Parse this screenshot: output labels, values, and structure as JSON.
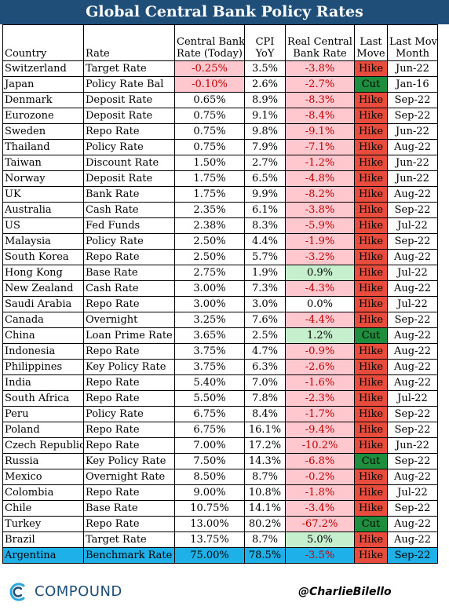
{
  "title": "Global Central Bank Policy Rates",
  "headers": {
    "country": "Country",
    "rate": "Rate",
    "policy_rate_l1": "Central Bank",
    "policy_rate_l2": "Rate (Today)",
    "cpi_l1": "CPI",
    "cpi_l2": "YoY",
    "real_l1": "Real Central",
    "real_l2": "Bank Rate",
    "move_l1": "Last",
    "move_l2": "Move",
    "month_l1": "Last Move",
    "month_l2": "Month"
  },
  "colors": {
    "title_bg": "#1f4e79",
    "negative_fill": "#ffc7ce",
    "positive_fill": "#c6efce",
    "negative_text": "#c00000",
    "hike_fill": "#e74c3c",
    "cut_fill": "#1e8e3e",
    "highlight_row": "#1eb0e8"
  },
  "chart_data": {
    "type": "table",
    "title": "Global Central Bank Policy Rates",
    "columns": [
      "Country",
      "Rate",
      "Central Bank Rate (Today)",
      "CPI YoY",
      "Real Central Bank Rate",
      "Last Move",
      "Last Move Month"
    ],
    "rows": [
      {
        "country": "Switzerland",
        "rate": "Target Rate",
        "policy_rate": "-0.25%",
        "cpi": "3.5%",
        "real": "-3.8%",
        "move": "Hike",
        "month": "Jun-22"
      },
      {
        "country": "Japan",
        "rate": "Policy Rate Bal",
        "policy_rate": "-0.10%",
        "cpi": "2.6%",
        "real": "-2.7%",
        "move": "Cut",
        "month": "Jan-16"
      },
      {
        "country": "Denmark",
        "rate": "Deposit Rate",
        "policy_rate": "0.65%",
        "cpi": "8.9%",
        "real": "-8.3%",
        "move": "Hike",
        "month": "Sep-22"
      },
      {
        "country": "Eurozone",
        "rate": "Deposit Rate",
        "policy_rate": "0.75%",
        "cpi": "9.1%",
        "real": "-8.4%",
        "move": "Hike",
        "month": "Sep-22"
      },
      {
        "country": "Sweden",
        "rate": "Repo Rate",
        "policy_rate": "0.75%",
        "cpi": "9.8%",
        "real": "-9.1%",
        "move": "Hike",
        "month": "Jun-22"
      },
      {
        "country": "Thailand",
        "rate": "Policy Rate",
        "policy_rate": "0.75%",
        "cpi": "7.9%",
        "real": "-7.1%",
        "move": "Hike",
        "month": "Aug-22"
      },
      {
        "country": "Taiwan",
        "rate": "Discount Rate",
        "policy_rate": "1.50%",
        "cpi": "2.7%",
        "real": "-1.2%",
        "move": "Hike",
        "month": "Jun-22"
      },
      {
        "country": "Norway",
        "rate": "Deposit Rate",
        "policy_rate": "1.75%",
        "cpi": "6.5%",
        "real": "-4.8%",
        "move": "Hike",
        "month": "Jun-22"
      },
      {
        "country": "UK",
        "rate": "Bank Rate",
        "policy_rate": "1.75%",
        "cpi": "9.9%",
        "real": "-8.2%",
        "move": "Hike",
        "month": "Aug-22"
      },
      {
        "country": "Australia",
        "rate": "Cash Rate",
        "policy_rate": "2.35%",
        "cpi": "6.1%",
        "real": "-3.8%",
        "move": "Hike",
        "month": "Sep-22"
      },
      {
        "country": "US",
        "rate": "Fed Funds",
        "policy_rate": "2.38%",
        "cpi": "8.3%",
        "real": "-5.9%",
        "move": "Hike",
        "month": "Jul-22"
      },
      {
        "country": "Malaysia",
        "rate": "Policy Rate",
        "policy_rate": "2.50%",
        "cpi": "4.4%",
        "real": "-1.9%",
        "move": "Hike",
        "month": "Sep-22"
      },
      {
        "country": "South Korea",
        "rate": "Repo Rate",
        "policy_rate": "2.50%",
        "cpi": "5.7%",
        "real": "-3.2%",
        "move": "Hike",
        "month": "Aug-22"
      },
      {
        "country": "Hong Kong",
        "rate": "Base Rate",
        "policy_rate": "2.75%",
        "cpi": "1.9%",
        "real": "0.9%",
        "move": "Hike",
        "month": "Jul-22"
      },
      {
        "country": "New Zealand",
        "rate": "Cash Rate",
        "policy_rate": "3.00%",
        "cpi": "7.3%",
        "real": "-4.3%",
        "move": "Hike",
        "month": "Aug-22"
      },
      {
        "country": "Saudi Arabia",
        "rate": "Repo Rate",
        "policy_rate": "3.00%",
        "cpi": "3.0%",
        "real": "0.0%",
        "move": "Hike",
        "month": "Jul-22"
      },
      {
        "country": "Canada",
        "rate": "Overnight",
        "policy_rate": "3.25%",
        "cpi": "7.6%",
        "real": "-4.4%",
        "move": "Hike",
        "month": "Sep-22"
      },
      {
        "country": "China",
        "rate": "Loan Prime Rate",
        "policy_rate": "3.65%",
        "cpi": "2.5%",
        "real": "1.2%",
        "move": "Cut",
        "month": "Aug-22"
      },
      {
        "country": "Indonesia",
        "rate": "Repo Rate",
        "policy_rate": "3.75%",
        "cpi": "4.7%",
        "real": "-0.9%",
        "move": "Hike",
        "month": "Aug-22"
      },
      {
        "country": "Philippines",
        "rate": "Key Policy Rate",
        "policy_rate": "3.75%",
        "cpi": "6.3%",
        "real": "-2.6%",
        "move": "Hike",
        "month": "Aug-22"
      },
      {
        "country": "India",
        "rate": "Repo Rate",
        "policy_rate": "5.40%",
        "cpi": "7.0%",
        "real": "-1.6%",
        "move": "Hike",
        "month": "Aug-22"
      },
      {
        "country": "South Africa",
        "rate": "Repo Rate",
        "policy_rate": "5.50%",
        "cpi": "7.8%",
        "real": "-2.3%",
        "move": "Hike",
        "month": "Jul-22"
      },
      {
        "country": "Peru",
        "rate": "Policy Rate",
        "policy_rate": "6.75%",
        "cpi": "8.4%",
        "real": "-1.7%",
        "move": "Hike",
        "month": "Sep-22"
      },
      {
        "country": "Poland",
        "rate": "Repo Rate",
        "policy_rate": "6.75%",
        "cpi": "16.1%",
        "real": "-9.4%",
        "move": "Hike",
        "month": "Sep-22"
      },
      {
        "country": "Czech Republic",
        "rate": "Repo Rate",
        "policy_rate": "7.00%",
        "cpi": "17.2%",
        "real": "-10.2%",
        "move": "Hike",
        "month": "Jun-22"
      },
      {
        "country": "Russia",
        "rate": "Key Policy Rate",
        "policy_rate": "7.50%",
        "cpi": "14.3%",
        "real": "-6.8%",
        "move": "Cut",
        "month": "Sep-22"
      },
      {
        "country": "Mexico",
        "rate": "Overnight Rate",
        "policy_rate": "8.50%",
        "cpi": "8.7%",
        "real": "-0.2%",
        "move": "Hike",
        "month": "Aug-22"
      },
      {
        "country": "Colombia",
        "rate": "Repo Rate",
        "policy_rate": "9.00%",
        "cpi": "10.8%",
        "real": "-1.8%",
        "move": "Hike",
        "month": "Jul-22"
      },
      {
        "country": "Chile",
        "rate": "Base Rate",
        "policy_rate": "10.75%",
        "cpi": "14.1%",
        "real": "-3.4%",
        "move": "Hike",
        "month": "Sep-22"
      },
      {
        "country": "Turkey",
        "rate": "Repo Rate",
        "policy_rate": "13.00%",
        "cpi": "80.2%",
        "real": "-67.2%",
        "move": "Cut",
        "month": "Aug-22"
      },
      {
        "country": "Brazil",
        "rate": "Target Rate",
        "policy_rate": "13.75%",
        "cpi": "8.7%",
        "real": "5.0%",
        "move": "Hike",
        "month": "Aug-22"
      },
      {
        "country": "Argentina",
        "rate": "Benchmark Rate",
        "policy_rate": "75.00%",
        "cpi": "78.5%",
        "real": "-3.5%",
        "move": "Hike",
        "month": "Sep-22"
      }
    ]
  },
  "footer": {
    "brand": "COMPOUND",
    "handle": "@CharlieBilello",
    "logo_icon": "compound-c-logo-icon"
  }
}
